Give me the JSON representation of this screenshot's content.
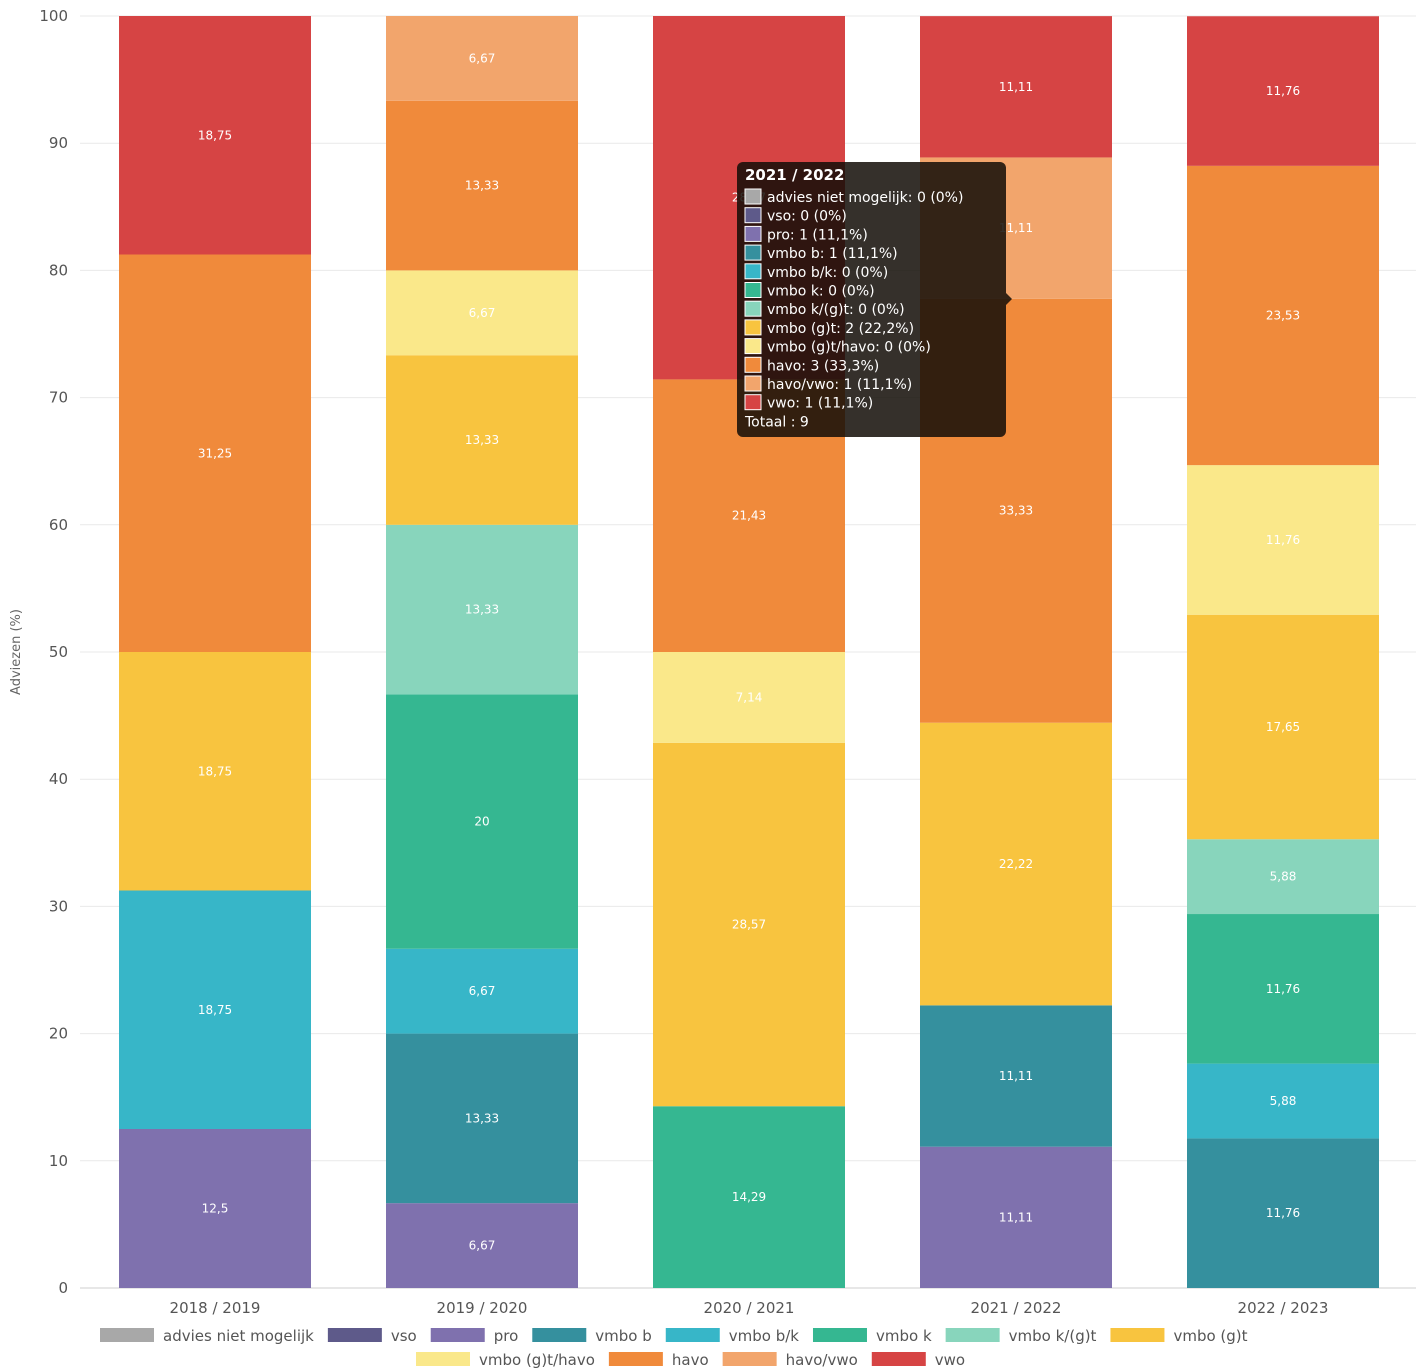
{
  "chart_data": {
    "type": "bar",
    "stacked": true,
    "ylabel": "Adviezen (%)",
    "ylim": [
      0,
      100
    ],
    "yticks": [
      0,
      10,
      20,
      30,
      40,
      50,
      60,
      70,
      80,
      90,
      100
    ],
    "grid": true,
    "legend_position": "bottom",
    "categories": [
      "2018 / 2019",
      "2019 / 2020",
      "2020 / 2021",
      "2021 / 2022",
      "2022 / 2023"
    ],
    "series": [
      {
        "name": "advies niet mogelijk",
        "color": "#a8a8a8",
        "values": [
          0,
          0,
          0,
          0,
          0
        ],
        "labels": [
          "",
          "",
          "",
          "",
          ""
        ]
      },
      {
        "name": "vso",
        "color": "#5e5a8a",
        "values": [
          0,
          0,
          0,
          0,
          0
        ],
        "labels": [
          "",
          "",
          "",
          "",
          ""
        ]
      },
      {
        "name": "pro",
        "color": "#7f71ae",
        "values": [
          12.5,
          6.67,
          0,
          11.11,
          0
        ],
        "labels": [
          "12,5",
          "6,67",
          "",
          "11,11",
          ""
        ]
      },
      {
        "name": "vmbo b",
        "color": "#35909e",
        "values": [
          0,
          13.33,
          0,
          11.11,
          11.76
        ],
        "labels": [
          "",
          "13,33",
          "",
          "11,11",
          "11,76"
        ]
      },
      {
        "name": "vmbo b/k",
        "color": "#37b6c8",
        "values": [
          18.75,
          6.67,
          0,
          0,
          5.88
        ],
        "labels": [
          "18,75",
          "6,67",
          "",
          "",
          "5,88"
        ]
      },
      {
        "name": "vmbo k",
        "color": "#35b791",
        "values": [
          0,
          20,
          14.29,
          0,
          11.76
        ],
        "labels": [
          "",
          "20",
          "14,29",
          "",
          "11,76"
        ]
      },
      {
        "name": "vmbo k/(g)t",
        "color": "#88d5bc",
        "values": [
          0,
          13.33,
          0,
          0,
          5.88
        ],
        "labels": [
          "",
          "13,33",
          "",
          "",
          "5,88"
        ]
      },
      {
        "name": "vmbo (g)t",
        "color": "#f8c43f",
        "values": [
          18.75,
          13.33,
          28.57,
          22.22,
          17.65
        ],
        "labels": [
          "18,75",
          "13,33",
          "28,57",
          "22,22",
          "17,65"
        ]
      },
      {
        "name": "vmbo (g)t/havo",
        "color": "#fae88a",
        "values": [
          0,
          6.67,
          7.14,
          0,
          11.76
        ],
        "labels": [
          "",
          "6,67",
          "7,14",
          "",
          "11,76"
        ]
      },
      {
        "name": "havo",
        "color": "#f08a3b",
        "values": [
          31.25,
          13.33,
          21.43,
          33.33,
          23.53
        ],
        "labels": [
          "31,25",
          "13,33",
          "21,43",
          "33,33",
          "23,53"
        ]
      },
      {
        "name": "havo/vwo",
        "color": "#f2a56c",
        "values": [
          0,
          6.67,
          0,
          11.11,
          0
        ],
        "labels": [
          "",
          "6,67",
          "",
          "11,11",
          ""
        ]
      },
      {
        "name": "vwo",
        "color": "#d64444",
        "values": [
          18.75,
          0,
          28.57,
          11.11,
          11.76
        ],
        "labels": [
          "18,75",
          "",
          "28,57",
          "11,11",
          "11,76"
        ]
      }
    ],
    "tooltip": {
      "title": "2021 / 2022",
      "category_index": 3,
      "lines": [
        "advies niet mogelijk: 0 (0%)",
        "vso: 0 (0%)",
        "pro: 1 (11,1%)",
        "vmbo b: 1 (11,1%)",
        "vmbo b/k: 0 (0%)",
        "vmbo k: 0 (0%)",
        "vmbo k/(g)t: 0 (0%)",
        "vmbo (g)t: 2 (22,2%)",
        "vmbo (g)t/havo: 0 (0%)",
        "havo: 3 (33,3%)",
        "havo/vwo: 1 (11,1%)",
        "vwo: 1 (11,1%)"
      ],
      "total": "Totaal : 9"
    }
  }
}
